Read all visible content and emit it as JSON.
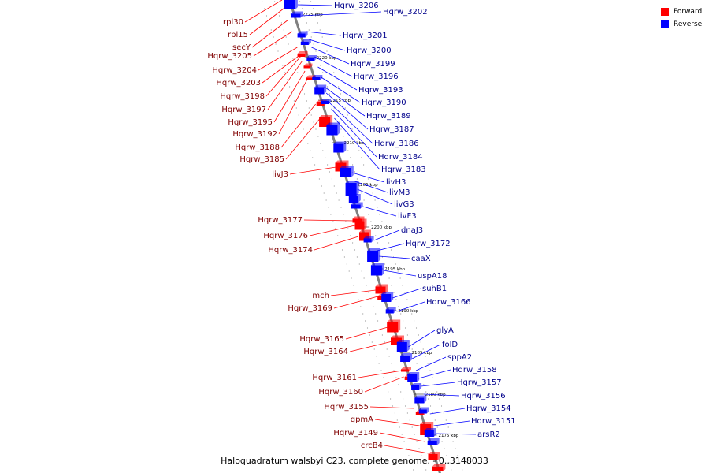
{
  "legend": {
    "forward": {
      "label": "Forward",
      "color": "#ff0000"
    },
    "reverse": {
      "label": "Reverse",
      "color": "#0000ff"
    }
  },
  "caption": "Haloquadratum walsbyi C23, complete genome. - 0..3148033",
  "colors": {
    "backbone": "#808080",
    "forward": "#ff0000",
    "reverse": "#0000ff",
    "tick": "#222222"
  },
  "kbp_markers": [
    "2225 kbp",
    "2220 kbp",
    "2215 kbp",
    "2210 kbp",
    "2205 kbp",
    "2200 kbp",
    "2195 kbp",
    "2190 kbp",
    "2185 kbp",
    "2180 kbp",
    "2175 kbp"
  ],
  "forward_genes": [
    "rpl30",
    "rpl15",
    "secY",
    "Hqrw_3205",
    "Hqrw_3204",
    "Hqrw_3203",
    "Hqrw_3198",
    "Hqrw_3197",
    "Hqrw_3195",
    "Hqrw_3192",
    "Hqrw_3188",
    "Hqrw_3185",
    "livJ3",
    "Hqrw_3177",
    "Hqrw_3176",
    "Hqrw_3174",
    "mch",
    "Hqrw_3169",
    "Hqrw_3165",
    "Hqrw_3164",
    "Hqrw_3161",
    "Hqrw_3160",
    "Hqrw_3155",
    "gpmA",
    "Hqrw_3149",
    "crcB4"
  ],
  "reverse_genes": [
    "Hqrw_3206",
    "Hqrw_3202",
    "Hqrw_3201",
    "Hqrw_3200",
    "Hqrw_3199",
    "Hqrw_3196",
    "Hqrw_3193",
    "Hqrw_3190",
    "Hqrw_3189",
    "Hqrw_3187",
    "Hqrw_3186",
    "Hqrw_3184",
    "Hqrw_3183",
    "livH3",
    "livM3",
    "livG3",
    "livF3",
    "dnaJ3",
    "Hqrw_3172",
    "caaX",
    "uspA18",
    "suhB1",
    "Hqrw_3166",
    "glyA",
    "folD",
    "sppA2",
    "Hqrw_3158",
    "Hqrw_3157",
    "Hqrw_3156",
    "Hqrw_3154",
    "Hqrw_3151",
    "arsR2"
  ]
}
